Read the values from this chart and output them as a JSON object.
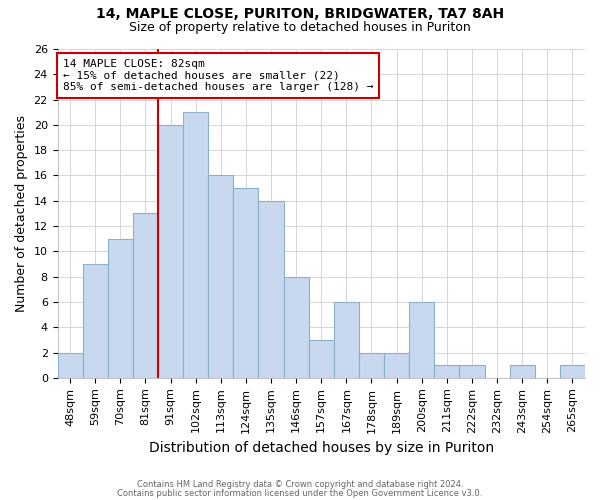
{
  "title_line1": "14, MAPLE CLOSE, PURITON, BRIDGWATER, TA7 8AH",
  "title_line2": "Size of property relative to detached houses in Puriton",
  "xlabel": "Distribution of detached houses by size in Puriton",
  "ylabel": "Number of detached properties",
  "categories": [
    "48sqm",
    "59sqm",
    "70sqm",
    "81sqm",
    "91sqm",
    "102sqm",
    "113sqm",
    "124sqm",
    "135sqm",
    "146sqm",
    "157sqm",
    "167sqm",
    "178sqm",
    "189sqm",
    "200sqm",
    "211sqm",
    "222sqm",
    "232sqm",
    "243sqm",
    "254sqm",
    "265sqm"
  ],
  "values": [
    2,
    9,
    11,
    13,
    20,
    21,
    16,
    15,
    14,
    8,
    3,
    6,
    2,
    2,
    6,
    1,
    1,
    0,
    1,
    0,
    1
  ],
  "bar_color": "#c8d8ee",
  "bar_edge_color": "#8ab0cc",
  "vline_color": "#cc0000",
  "vline_x": 3.5,
  "annotation_text_line1": "14 MAPLE CLOSE: 82sqm",
  "annotation_text_line2": "← 15% of detached houses are smaller (22)",
  "annotation_text_line3": "85% of semi-detached houses are larger (128) →",
  "annotation_box_color": "#ffffff",
  "annotation_box_edge": "#cc0000",
  "ylim": [
    0,
    26
  ],
  "yticks": [
    0,
    2,
    4,
    6,
    8,
    10,
    12,
    14,
    16,
    18,
    20,
    22,
    24,
    26
  ],
  "footnote1": "Contains HM Land Registry data © Crown copyright and database right 2024.",
  "footnote2": "Contains public sector information licensed under the Open Government Licence v3.0.",
  "bg_color": "#ffffff",
  "plot_bg_color": "#ffffff",
  "grid_color": "#d0d0d0",
  "title1_fontsize": 10,
  "title2_fontsize": 9,
  "xlabel_fontsize": 10,
  "ylabel_fontsize": 9,
  "tick_fontsize": 8,
  "annot_fontsize": 8
}
